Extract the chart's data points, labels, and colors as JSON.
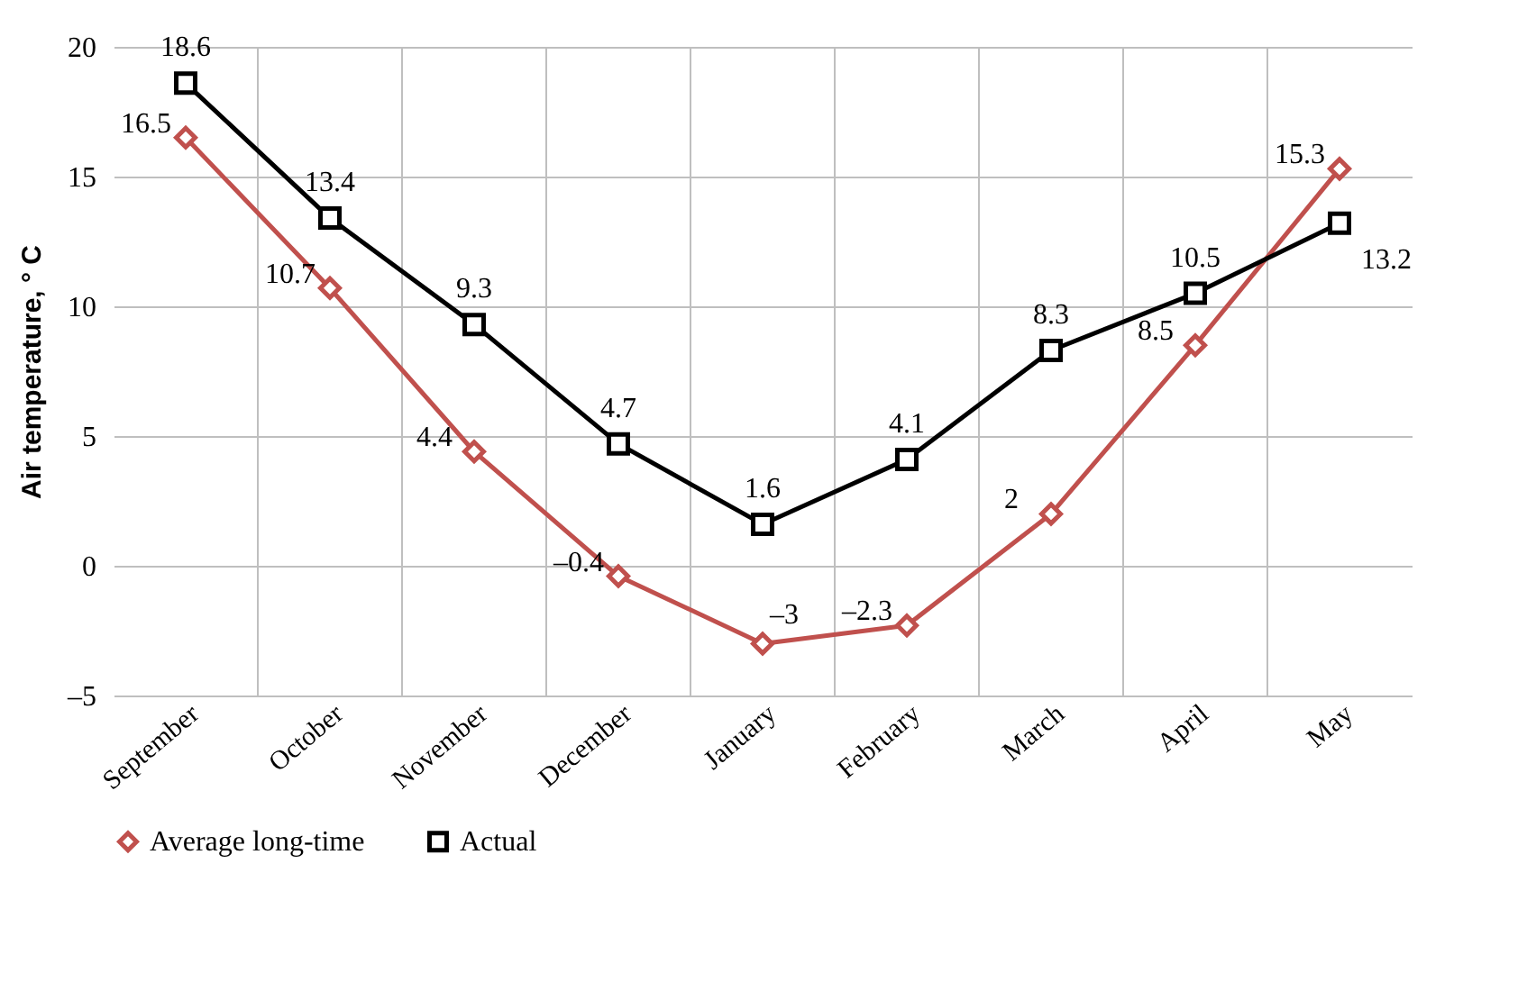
{
  "chart_data": {
    "type": "line",
    "ylabel": "Air temperature, ° C",
    "categories": [
      "September",
      "October",
      "November",
      "December",
      "January",
      "February",
      "March",
      "April",
      "May"
    ],
    "series": [
      {
        "name": "Average long-time",
        "color": "#c0504d",
        "marker": "diamond",
        "values": [
          16.5,
          10.7,
          4.4,
          -0.4,
          -3,
          -2.3,
          2,
          8.5,
          15.3
        ],
        "value_labels": [
          "16.5",
          "10.7",
          "4.4",
          "–0.4",
          "–3",
          "–2.3",
          "2",
          "8.5",
          "15.3"
        ]
      },
      {
        "name": "Actual",
        "color": "#000000",
        "marker": "square",
        "values": [
          18.6,
          13.4,
          9.3,
          4.7,
          1.6,
          4.1,
          8.3,
          10.5,
          13.2
        ],
        "value_labels": [
          "18.6",
          "13.4",
          "9.3",
          "4.7",
          "1.6",
          "4.1",
          "8.3",
          "10.5",
          "13.2"
        ]
      }
    ],
    "ylim": [
      -5,
      20
    ],
    "yticks": [
      {
        "value": -5,
        "label": "–5"
      },
      0,
      5,
      10,
      15,
      20
    ],
    "grid": true,
    "legend": "bottom",
    "line_style": "solid"
  }
}
